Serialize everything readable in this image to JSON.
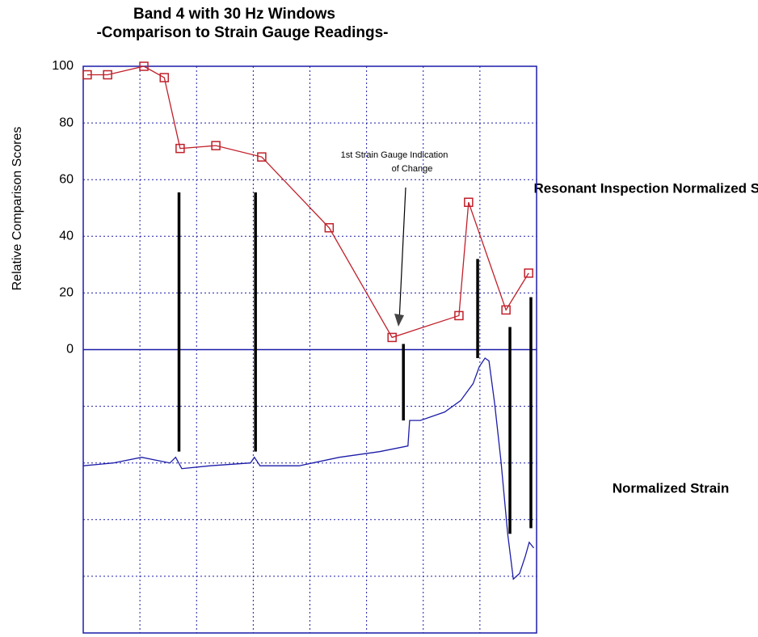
{
  "chart_data": {
    "type": "line",
    "title": "Band 4 with 30 Hz Windows",
    "subtitle": "-Comparison to Strain Gauge Readings-",
    "y_label": "Relative Comparison Scores",
    "xlim": [
      0,
      8
    ],
    "xgrid": [
      0,
      1,
      2,
      3,
      4,
      5,
      6,
      7,
      8
    ],
    "ylim": [
      -100,
      100
    ],
    "yticks": [
      0,
      20,
      40,
      60,
      80,
      100
    ],
    "ygrid": [
      -100,
      -80,
      -60,
      -40,
      -20,
      0,
      20,
      40,
      60,
      80,
      100
    ],
    "grid": true,
    "series": [
      {
        "name": "Resonant Inspection Normalized Scores",
        "color": "#c0202a",
        "marker": "square",
        "x": [
          0.07,
          0.43,
          1.07,
          1.43,
          1.71,
          2.34,
          3.15,
          4.34,
          5.45,
          6.63,
          6.8,
          7.46,
          7.86
        ],
        "values": [
          97,
          97,
          100,
          96,
          71,
          72,
          68,
          43,
          4.3,
          12,
          52,
          14,
          27
        ]
      },
      {
        "name": "Normalized Strain",
        "color": "#1c1ca8",
        "marker": "none",
        "x": [
          0,
          0.53,
          1.03,
          1.53,
          1.63,
          1.74,
          2.24,
          2.95,
          3.02,
          3.12,
          3.81,
          4.52,
          5.23,
          5.73,
          5.76,
          5.95,
          6.38,
          6.66,
          6.88,
          6.99,
          7.09,
          7.16,
          7.26,
          7.37,
          7.49,
          7.59,
          7.7,
          7.8,
          7.87,
          7.95
        ],
        "values": [
          -41,
          -40,
          -38,
          -40,
          -38,
          -42,
          -41,
          -40,
          -38,
          -41,
          -41,
          -38,
          -36,
          -34,
          -25,
          -25,
          -22,
          -18,
          -12,
          -6,
          -3,
          -4,
          -19,
          -39,
          -65,
          -81,
          -79,
          -73,
          -68,
          -70
        ]
      }
    ],
    "annotation": [
      "1st Strain Gauge Indication",
      "of Change"
    ],
    "event_markers": {
      "color": "#000000",
      "x": [
        1.69,
        3.04,
        5.65,
        6.96,
        7.53,
        7.9
      ],
      "top": [
        55.5,
        55.5,
        2,
        32,
        8,
        18.5
      ],
      "bottom": [
        -36,
        -36,
        -25,
        -3,
        -65,
        -63
      ]
    }
  }
}
